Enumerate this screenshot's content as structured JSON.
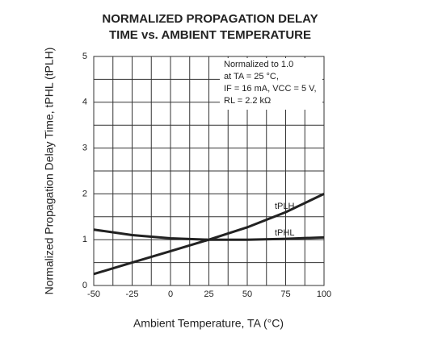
{
  "chart_data": {
    "type": "line",
    "title": [
      "NORMALIZED PROPAGATION DELAY",
      "TIME vs. AMBIENT TEMPERATURE"
    ],
    "x_label": "Ambient Temperature, TA (°C)",
    "y_label": "Normalized Propagation Delay Time, tPHL (tPLH)",
    "annotation": [
      "Normalized to 1.0",
      "at TA = 25 °C,",
      "IF = 16 mA, VCC = 5 V,",
      "RL = 2.2 kΩ"
    ],
    "x": [
      -50,
      -25,
      0,
      25,
      50,
      75,
      100
    ],
    "series": [
      {
        "name": "tPLH",
        "color": "#222222",
        "values": [
          0.25,
          0.5,
          0.75,
          1.0,
          1.27,
          1.6,
          2.0
        ]
      },
      {
        "name": "tPHL",
        "color": "#222222",
        "values": [
          1.22,
          1.1,
          1.03,
          1.0,
          1.0,
          1.02,
          1.05
        ]
      }
    ],
    "xlim": [
      -50,
      100
    ],
    "xticks": [
      -50,
      -25,
      0,
      25,
      50,
      75,
      100
    ],
    "ylim": [
      0,
      5
    ],
    "yticks": [
      0,
      1,
      2,
      3,
      4,
      5
    ],
    "x_grid": [
      -50,
      -37.5,
      -25,
      -12.5,
      0,
      12.5,
      25,
      37.5,
      50,
      62.5,
      75,
      87.5,
      100
    ],
    "y_grid": [
      0,
      0.5,
      1,
      1.5,
      2,
      2.5,
      3,
      3.5,
      4,
      4.5,
      5
    ],
    "grid": true
  }
}
